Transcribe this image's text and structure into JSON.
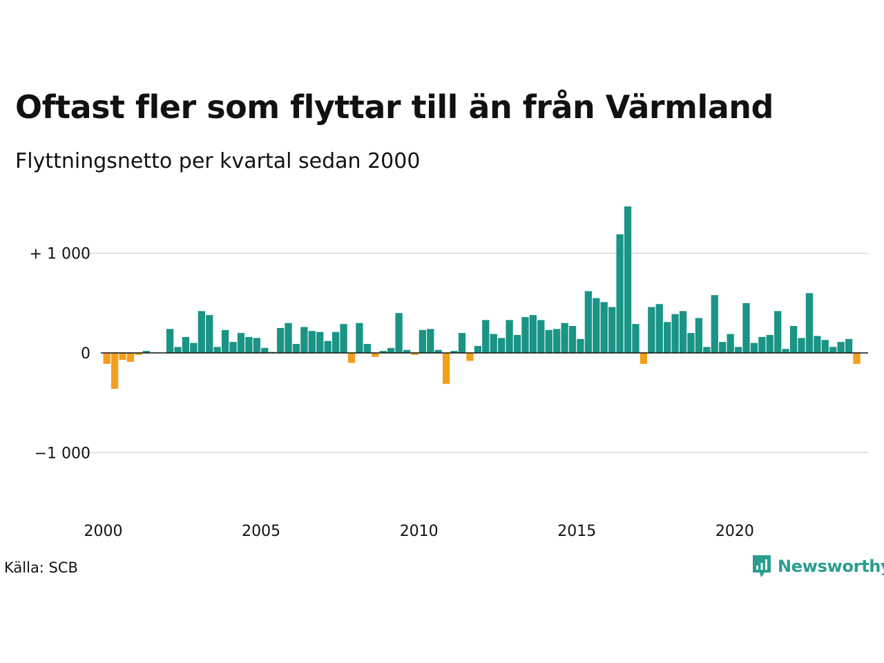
{
  "title": "Oftast fler som flyttar till än från Värmland",
  "subtitle": "Flyttningsnetto per kvartal sedan 2000",
  "source": "Källa: SCB",
  "brand": "Newsworthy",
  "colors": {
    "positive": "#1a9485",
    "negative": "#f29f1b",
    "grid": "#e0e0e0",
    "brand": "#2a9d8f"
  },
  "chart_data": {
    "type": "bar",
    "title": "Oftast fler som flyttar till än från Värmland",
    "subtitle": "Flyttningsnetto per kvartal sedan 2000",
    "xlabel": "",
    "ylabel": "",
    "ylim": [
      -1500,
      1500
    ],
    "grid": true,
    "y_ticks": [
      {
        "value": 1000,
        "label": "+ 1 000"
      },
      {
        "value": 0,
        "label": "0"
      },
      {
        "value": -1000,
        "label": "−1 000"
      }
    ],
    "x_ticks": [
      "2000",
      "2005",
      "2010",
      "2015",
      "2020"
    ],
    "x_start_year": 2000,
    "series": [
      {
        "values": [
          -110,
          -360,
          -70,
          -90,
          -20,
          20,
          5,
          0,
          240,
          60,
          160,
          100,
          420,
          380,
          60,
          230,
          110,
          200,
          160,
          150,
          50,
          10,
          250,
          300,
          90,
          260,
          220,
          210,
          120,
          210,
          290,
          -100,
          300,
          90,
          -40,
          20,
          50,
          400,
          30,
          -20,
          230,
          240,
          30,
          -310,
          20,
          200,
          -80,
          70,
          330,
          190,
          150,
          330,
          180,
          360,
          380,
          330,
          230,
          240,
          300,
          270,
          140,
          620,
          550,
          510,
          460,
          1190,
          1470,
          290,
          -110,
          460,
          490,
          310,
          390,
          420,
          200,
          350,
          60,
          580,
          110,
          190,
          60,
          500,
          100,
          160,
          180,
          420,
          40,
          270,
          150,
          600,
          170,
          130,
          60,
          110,
          140,
          -110
        ]
      }
    ]
  }
}
